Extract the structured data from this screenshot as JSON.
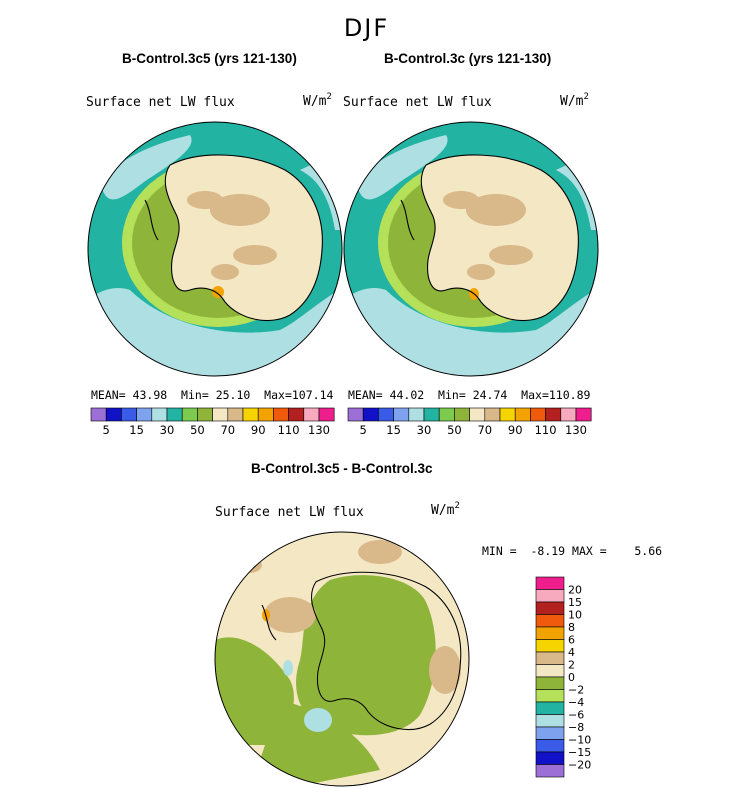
{
  "season": "DJF",
  "panels": {
    "left": {
      "title": "B-Control.3c5 (yrs 121-130)",
      "field": "Surface net LW flux",
      "units": "W/m",
      "units_exp": "2",
      "stats": {
        "mean_label": "MEAN=",
        "mean": "43.98",
        "min_label": "Min=",
        "min": "25.10",
        "max_label": "Max=",
        "max": "107.14"
      }
    },
    "right": {
      "title": "B-Control.3c (yrs 121-130)",
      "field": "Surface net LW flux",
      "units": "W/m",
      "units_exp": "2",
      "stats": {
        "mean_label": "MEAN=",
        "mean": "44.02",
        "min_label": "Min=",
        "min": "24.74",
        "max_label": "Max=",
        "max": "110.89"
      }
    },
    "diff": {
      "title": "B-Control.3c5 - B-Control.3c",
      "field": "Surface net LW flux",
      "units": "W/m",
      "units_exp": "2",
      "stats": {
        "min_label": "MIN =",
        "min": "-8.19",
        "max_label": "MAX =",
        "max": "5.66"
      }
    }
  },
  "colorbar_abs": {
    "colors": [
      "#9b6fd6",
      "#1111c8",
      "#3a5ae8",
      "#7fa2ee",
      "#aedfe3",
      "#22b3a3",
      "#7ccb4f",
      "#8fb43a",
      "#f3e7c4",
      "#d9b88a",
      "#f5d400",
      "#f2a300",
      "#f05a0c",
      "#b2211f",
      "#f7a9be",
      "#ee1e8c"
    ],
    "labels": [
      "5",
      "15",
      "30",
      "50",
      "70",
      "90",
      "110",
      "130"
    ]
  },
  "colorbar_diff": {
    "colors": [
      "#ee1e8c",
      "#f7a9be",
      "#b2211f",
      "#f05a0c",
      "#f2a300",
      "#f5d400",
      "#d9b88a",
      "#f3e7c4",
      "#8fb43a",
      "#b5e05a",
      "#22b3a3",
      "#aedfe3",
      "#7fa2ee",
      "#3a5ae8",
      "#1111c8",
      "#9b6fd6"
    ],
    "labels": [
      "20",
      "15",
      "10",
      "8",
      "6",
      "4",
      "2",
      "0",
      "−2",
      "−4",
      "−6",
      "−8",
      "−10",
      "−15",
      "−20"
    ]
  },
  "map_colors": {
    "ocean": "#22b3a3",
    "sea_ice": "#aedfe3",
    "ring_lime": "#b5e05a",
    "ring_green": "#8fb43a",
    "ice_sheet": "#f3e7c4",
    "ice_tan": "#d9b88a",
    "hot": "#f2a300",
    "diff_bg": "#f3e7c4",
    "diff_green": "#8fb43a",
    "diff_tan": "#d9b88a"
  }
}
